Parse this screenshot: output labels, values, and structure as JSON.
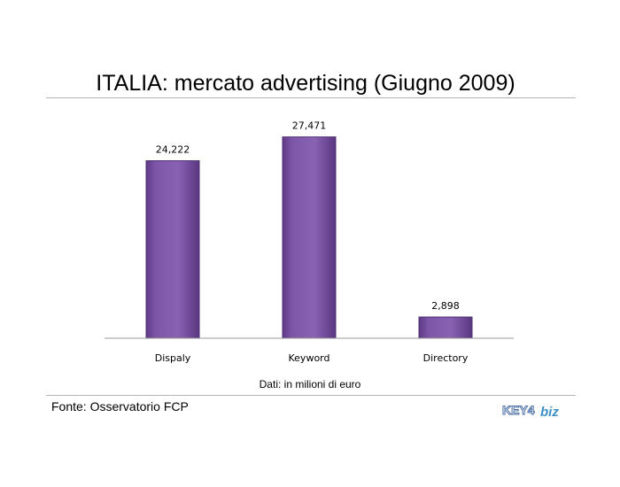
{
  "chart_data": {
    "type": "bar",
    "title": "ITALIA: mercato advertising (Giugno 2009)",
    "categories": [
      "Dispaly",
      "Keyword",
      "Directory"
    ],
    "values": [
      24222,
      27471,
      2898
    ],
    "data_labels": [
      "24,222",
      "27,471",
      "2,898"
    ],
    "xlabel": "",
    "ylabel": "",
    "ylim": [
      0,
      29000
    ],
    "grid": false,
    "bar_color": "#7e56a8"
  },
  "note": "Dati: in milioni di euro",
  "source": "Fonte: Osservatorio FCP",
  "logo": {
    "text_left": "KEY4",
    "text_right": "biz",
    "color_left": "#4a6fa5",
    "color_right": "#3d8fc8"
  }
}
